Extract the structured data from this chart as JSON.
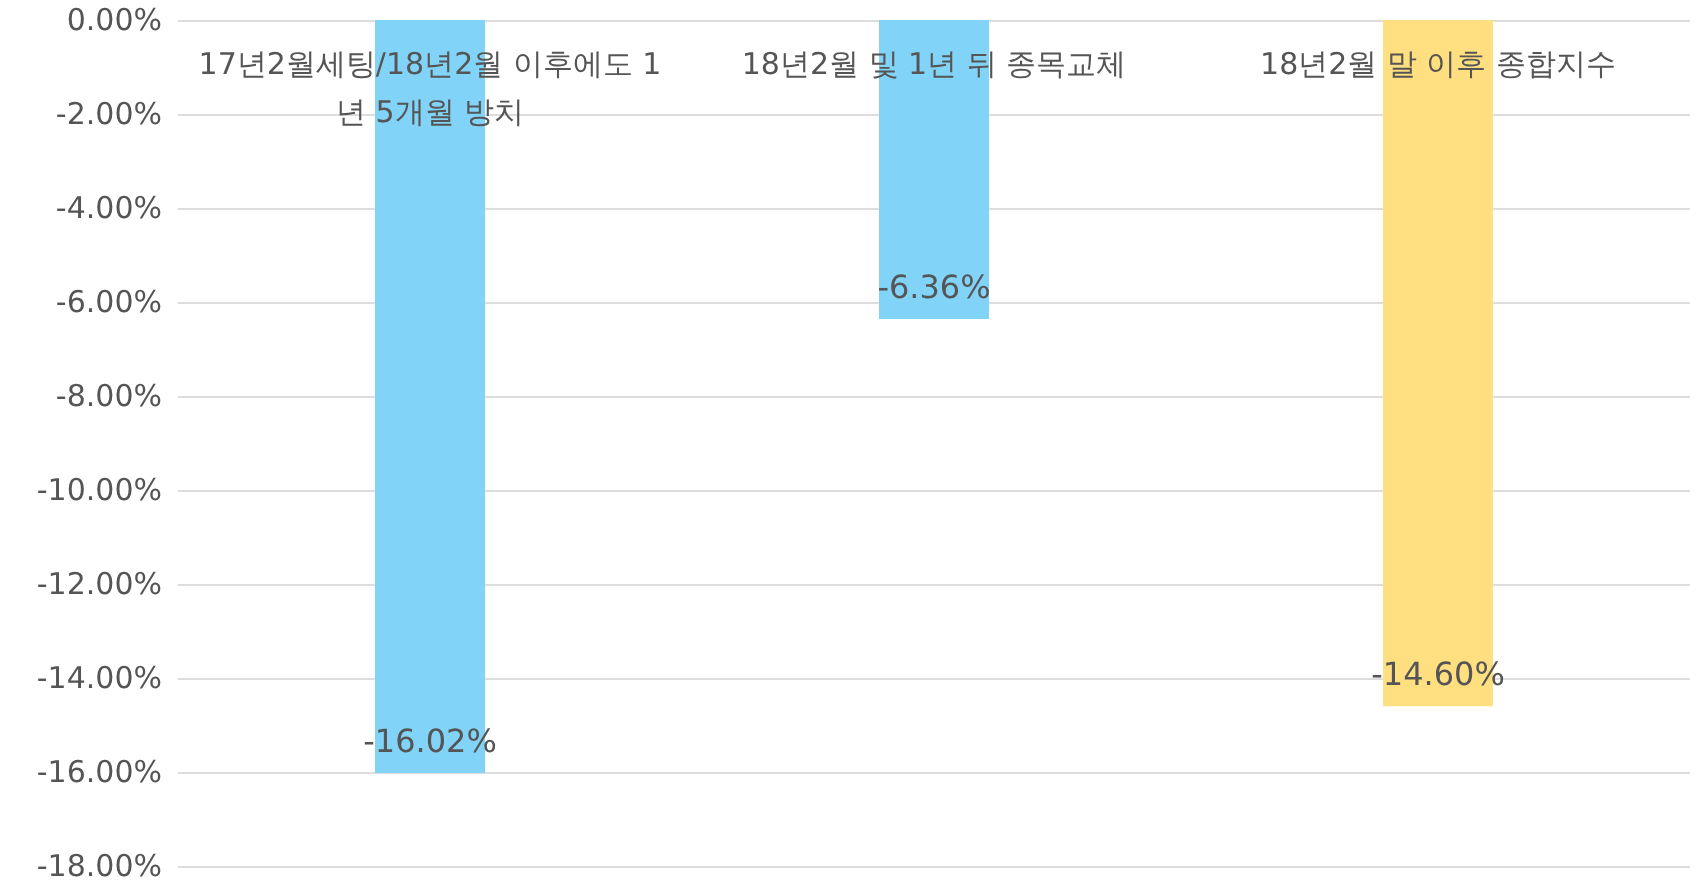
{
  "chart_data": {
    "type": "bar",
    "categories": [
      "17년2월세팅/18년2월 이후에도 1년 5개월 방치",
      "18년2월 및 1년 뒤 종목교체",
      "18년2월 말 이후 종합지수"
    ],
    "values": [
      -16.02,
      -6.36,
      -14.6
    ],
    "colors": [
      "#81d4f7",
      "#81d4f7",
      "#ffdf80"
    ],
    "value_labels": [
      "-16.02%",
      "-6.36%",
      "-14.60%"
    ],
    "ylim": [
      -18,
      0
    ],
    "yticks": [
      {
        "value": 0,
        "label": "0.00%"
      },
      {
        "value": -2,
        "label": "-2.00%"
      },
      {
        "value": -4,
        "label": "-4.00%"
      },
      {
        "value": -6,
        "label": "-6.00%"
      },
      {
        "value": -8,
        "label": "-8.00%"
      },
      {
        "value": -10,
        "label": "-10.00%"
      },
      {
        "value": -12,
        "label": "-12.00%"
      },
      {
        "value": -14,
        "label": "-14.00%"
      },
      {
        "value": -16,
        "label": "-16.00%"
      },
      {
        "value": -18,
        "label": "-18.00%"
      }
    ],
    "grid": "y"
  }
}
